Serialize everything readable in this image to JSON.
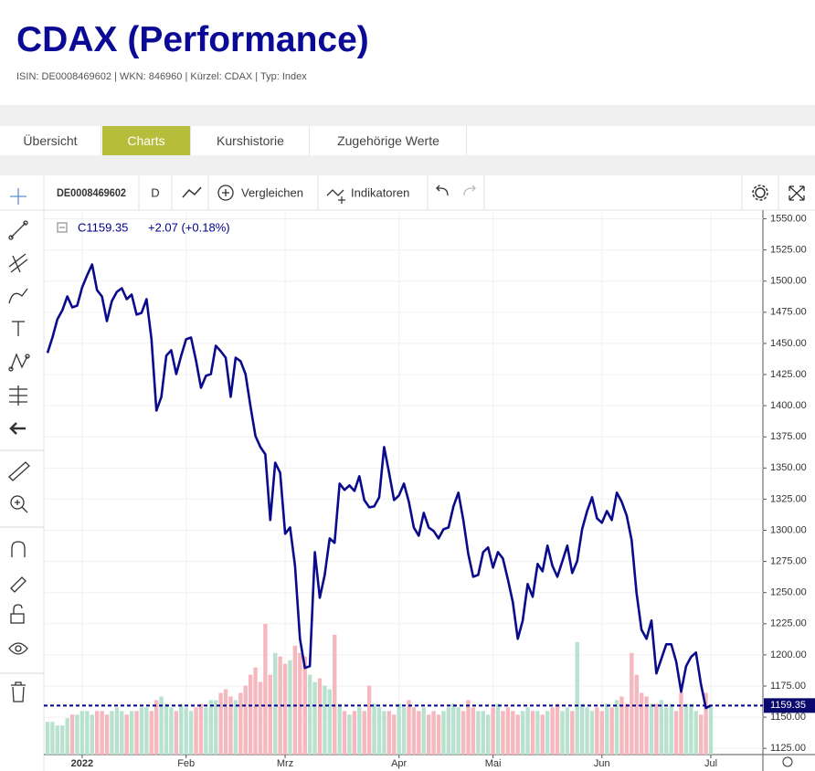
{
  "header": {
    "title": "CDAX (Performance)",
    "subtitle": "ISIN: DE0008469602 | WKN: 846960 | Kürzel: CDAX | Typ: Index"
  },
  "tabs": [
    "Übersicht",
    "Charts",
    "Kurshistorie",
    "Zugehörige Werte"
  ],
  "toolbar": {
    "symbol": "DE0008469602",
    "interval": "D",
    "compare": "Vergleichen",
    "indicators": "Indikatoren"
  },
  "chart_data": {
    "type": "line",
    "legend": {
      "close": "C1159.35",
      "change": "+2.07 (+0.18%)"
    },
    "last_label": "1159.35",
    "categories": [
      null,
      null,
      null,
      null,
      null,
      null,
      null,
      "2022",
      null,
      null,
      null,
      null,
      null,
      null,
      null,
      null,
      null,
      null,
      null,
      null,
      null,
      null,
      null,
      null,
      null,
      null,
      null,
      null,
      "Feb",
      null,
      null,
      null,
      null,
      null,
      null,
      null,
      null,
      null,
      null,
      null,
      null,
      null,
      null,
      null,
      null,
      null,
      null,
      null,
      "Mrz",
      null,
      null,
      null,
      null,
      null,
      null,
      null,
      null,
      null,
      null,
      null,
      null,
      null,
      null,
      null,
      null,
      null,
      null,
      null,
      null,
      null,
      null,
      "Apr",
      null,
      null,
      null,
      null,
      null,
      null,
      null,
      null,
      null,
      null,
      null,
      null,
      null,
      null,
      null,
      null,
      null,
      null,
      "Mai",
      null,
      null,
      null,
      null,
      null,
      null,
      null,
      null,
      null,
      null,
      null,
      null,
      null,
      null,
      null,
      null,
      null,
      null,
      null,
      null,
      null,
      "Jun",
      null,
      null,
      null,
      null,
      null,
      null,
      null,
      null,
      null,
      null,
      null,
      null,
      null,
      null,
      null,
      null,
      null,
      null,
      null,
      null,
      null,
      "Jul"
    ],
    "series": [
      {
        "name": "CDAX",
        "color": "#0a0a8c",
        "values": [
          1442.3,
          1454.7,
          1469.4,
          1476.7,
          1487.7,
          1478.9,
          1480.4,
          1495,
          1504.6,
          1513.4,
          1492.8,
          1487.7,
          1467.9,
          1484,
          1491.4,
          1494.3,
          1485.5,
          1489.2,
          1473.1,
          1474.5,
          1485.5,
          1453.3,
          1396.1,
          1407.1,
          1440.1,
          1444.5,
          1425.4,
          1440.1,
          1453.3,
          1454.7,
          1436.4,
          1414.4,
          1424,
          1425.4,
          1448.1,
          1443.7,
          1438.6,
          1407.1,
          1438.6,
          1435.7,
          1425.4,
          1399.8,
          1375.6,
          1366.8,
          1360.9,
          1308.2,
          1354.3,
          1346.3,
          1297.2,
          1302.3,
          1271.5,
          1212.9,
          1189.5,
          1190.9,
          1282.5,
          1245.9,
          1264.2,
          1293.5,
          1289.9,
          1337.5,
          1332.4,
          1336,
          1331.6,
          1343.4,
          1324.3,
          1318.4,
          1319.2,
          1326.5,
          1366.8,
          1346.3,
          1324.3,
          1328,
          1337.5,
          1322.8,
          1302.3,
          1295.7,
          1314,
          1302.3,
          1299.4,
          1293.5,
          1300.8,
          1302.3,
          1319.2,
          1330.2,
          1308.2,
          1281.1,
          1262.7,
          1264.2,
          1282.5,
          1286.2,
          1270.1,
          1282.5,
          1277.4,
          1260.5,
          1242.2,
          1212.9,
          1227.6,
          1256.9,
          1246.6,
          1273,
          1267.1,
          1287.7,
          1271.5,
          1262.7,
          1275.2,
          1287.7,
          1265.7,
          1275.2,
          1300.8,
          1315.5,
          1326.5,
          1309.6,
          1306,
          1315.5,
          1308.2,
          1330.2,
          1322.8,
          1311.8,
          1292.1,
          1249.6,
          1220.2,
          1212.9,
          1227.6,
          1185.1,
          1196.8,
          1208.5,
          1208.5,
          1194.6,
          1170.4,
          1190.9,
          1198.3,
          1201.9,
          1176.3,
          1157.3,
          1159.35
        ]
      },
      {
        "name": "Volumen",
        "axis": "y2",
        "up_color": "#b8e2cf",
        "down_color": "#f6b8bf",
        "values": [
          9,
          9,
          8,
          8,
          10,
          11,
          11,
          12,
          12,
          11,
          12,
          12,
          11,
          12,
          13,
          12,
          11,
          12,
          12,
          13,
          13,
          12,
          15,
          16,
          14,
          13,
          12,
          14,
          13,
          12,
          13,
          14,
          13,
          15,
          15,
          17,
          18,
          16,
          15,
          17,
          19,
          22,
          24,
          20,
          36,
          22,
          28,
          27,
          25,
          26,
          30,
          28,
          27,
          22,
          20,
          21,
          19,
          18,
          33,
          14,
          12,
          11,
          12,
          13,
          12,
          19,
          14,
          13,
          12,
          12,
          11,
          14,
          13,
          15,
          13,
          12,
          13,
          11,
          12,
          11,
          12,
          13,
          14,
          13,
          12,
          15,
          13,
          12,
          12,
          11,
          13,
          14,
          12,
          13,
          12,
          11,
          12,
          13,
          12,
          12,
          11,
          12,
          13,
          14,
          12,
          13,
          12,
          31,
          14,
          13,
          12,
          13,
          12,
          14,
          13,
          15,
          16,
          14,
          28,
          22,
          17,
          16,
          14,
          14,
          15,
          13,
          14,
          12,
          17,
          14,
          14,
          12,
          11,
          17,
          13
        ]
      }
    ],
    "ylim": [
      1120,
      1557
    ],
    "y2lim": [
      0,
      150
    ],
    "yticks": [
      {
        "value": 1125,
        "label": "1125.00"
      },
      {
        "value": 1150,
        "label": "1150.00"
      },
      {
        "value": 1175,
        "label": "1175.00"
      },
      {
        "value": 1200,
        "label": "1200.00"
      },
      {
        "value": 1225,
        "label": "1225.00"
      },
      {
        "value": 1250,
        "label": "1250.00"
      },
      {
        "value": 1275,
        "label": "1275.00"
      },
      {
        "value": 1300,
        "label": "1300.00"
      },
      {
        "value": 1325,
        "label": "1325.00"
      },
      {
        "value": 1350,
        "label": "1350.00"
      },
      {
        "value": 1375,
        "label": "1375.00"
      },
      {
        "value": 1400,
        "label": "1400.00"
      },
      {
        "value": 1425,
        "label": "1425.00"
      },
      {
        "value": 1450,
        "label": "1450.00"
      },
      {
        "value": 1475,
        "label": "1475.00"
      },
      {
        "value": 1500,
        "label": "1500.00"
      },
      {
        "value": 1525,
        "label": "1525.00"
      },
      {
        "value": 1550,
        "label": "1550.00"
      }
    ],
    "grid": true
  }
}
